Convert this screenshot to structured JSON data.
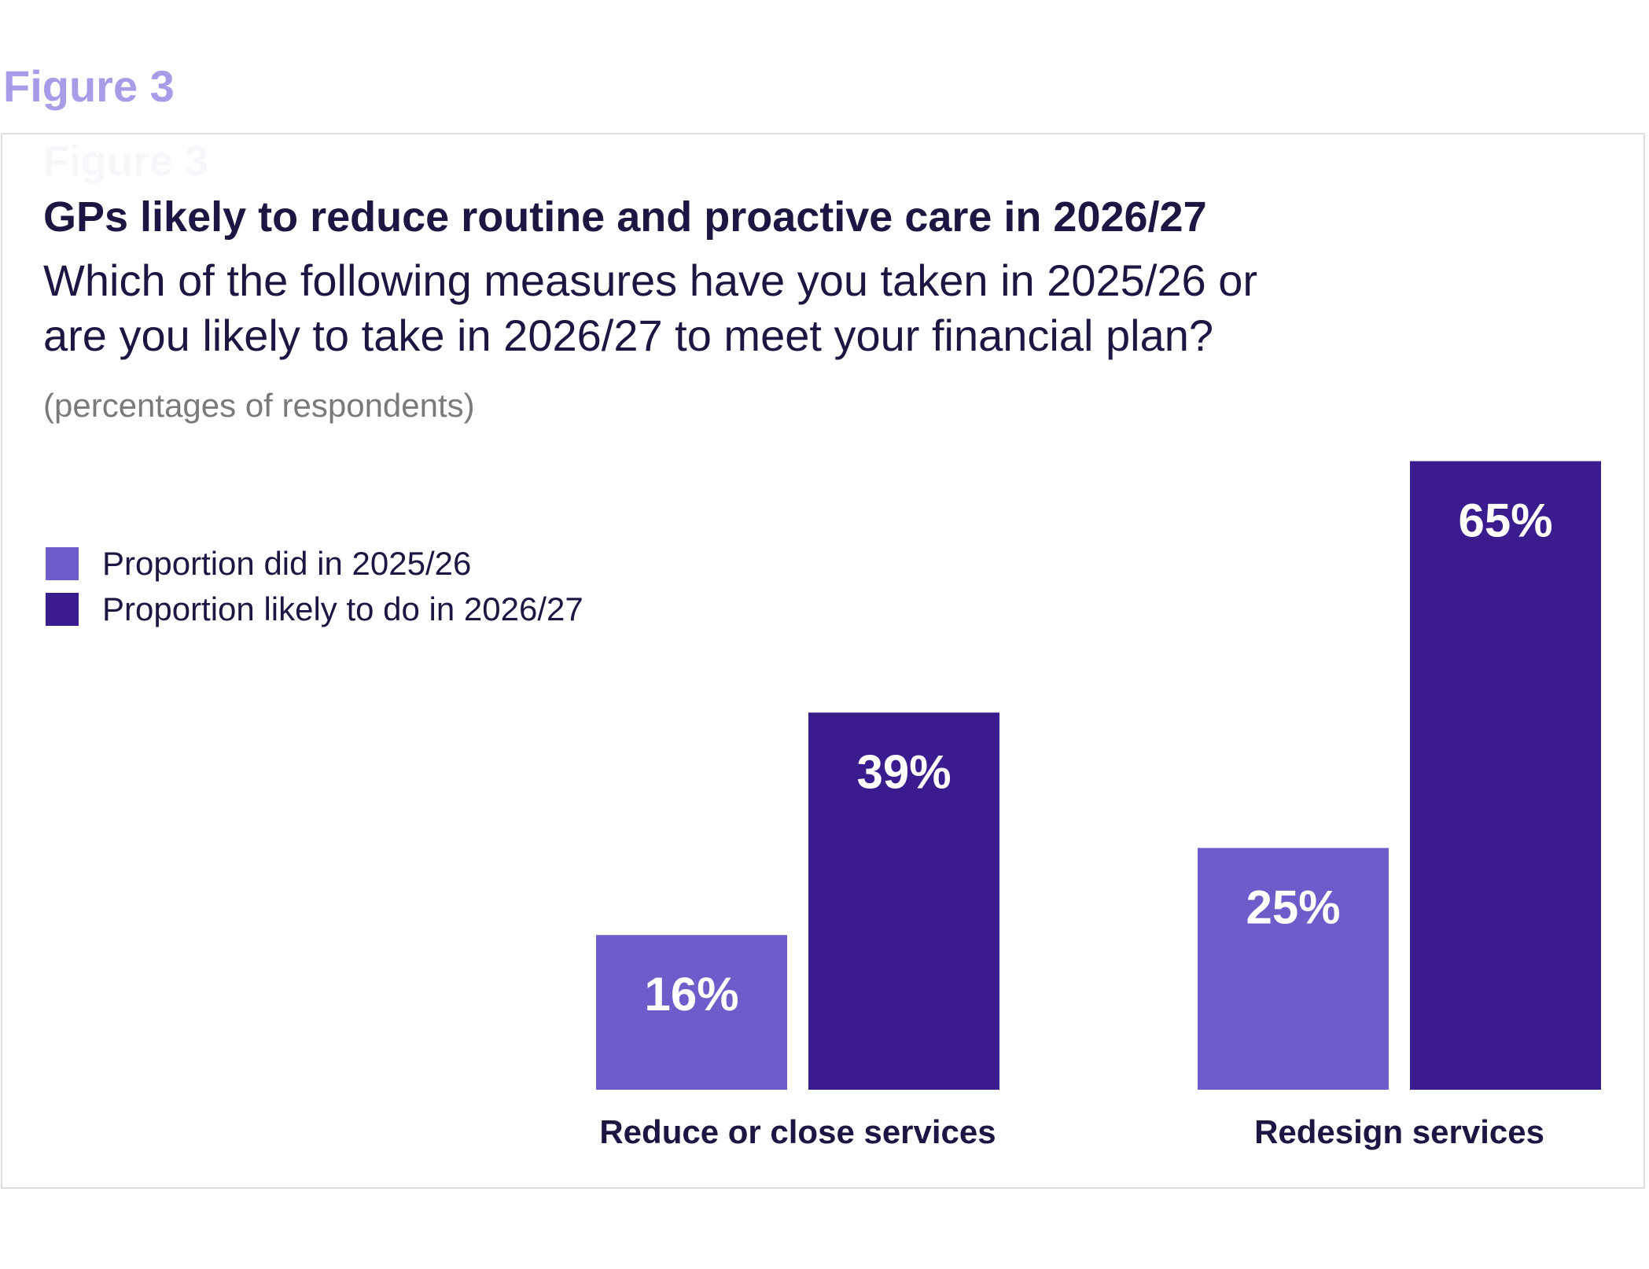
{
  "figure_label": "Figure 3",
  "ghost_label": "Figure 3",
  "colors": {
    "series_2025": "#6e5cca",
    "series_2026": "#3a1c8e",
    "title_text": "#1c1642",
    "figure_label": "#a99be8"
  },
  "chart_data": {
    "type": "bar",
    "title": "GPs likely to reduce routine and proactive care in 2026/27",
    "subtitle_lines": [
      "Which of the following measures have you taken in 2025/26 or",
      "are you likely to take in 2026/27 to meet your financial plan?"
    ],
    "unit_note": "(percentages of respondents)",
    "categories": [
      "Reduce or close services",
      "Redesign services"
    ],
    "series": [
      {
        "name": "Proportion did in 2025/26",
        "values": [
          16,
          25
        ],
        "labels": [
          "16%",
          "25%"
        ]
      },
      {
        "name": "Proportion likely to do in 2026/27",
        "values": [
          39,
          65
        ],
        "labels": [
          "39%",
          "65%"
        ]
      }
    ],
    "ylim": [
      0,
      100
    ],
    "legend_position": "top-left",
    "grid": false
  }
}
